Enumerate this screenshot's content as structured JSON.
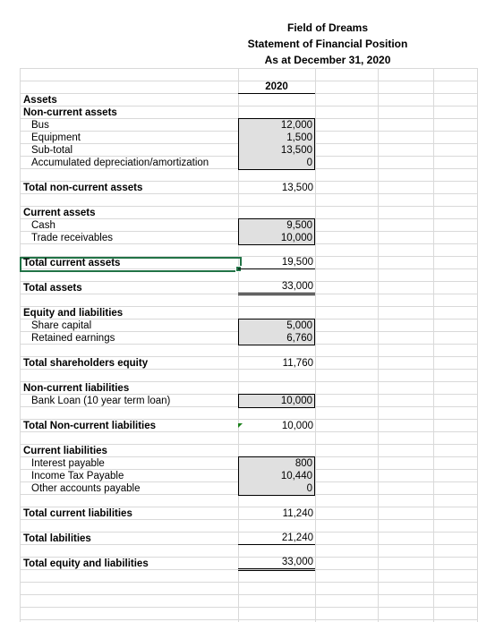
{
  "header": {
    "company": "Field of Dreams",
    "statement": "Statement of Financial Position",
    "date": "As at December 31, 2020",
    "year": "2020"
  },
  "assets": {
    "heading": "Assets",
    "noncurrent_heading": "Non-current assets",
    "bus": {
      "label": "Bus",
      "value": "12,000"
    },
    "equipment": {
      "label": "Equipment",
      "value": "1,500"
    },
    "subtotal": {
      "label": "Sub-total",
      "value": "13,500"
    },
    "accum_dep": {
      "label": "Accumulated depreciation/amortization",
      "value": "0"
    },
    "total_noncurrent": {
      "label": "Total non-current assets",
      "value": "13,500"
    },
    "current_heading": "Current assets",
    "cash": {
      "label": "Cash",
      "value": "9,500"
    },
    "trade_receivables": {
      "label": "Trade receivables",
      "value": "10,000"
    },
    "total_current": {
      "label": "Total current assets",
      "value": "19,500"
    },
    "total_assets": {
      "label": "Total assets",
      "value": "33,000"
    }
  },
  "equity": {
    "heading": "Equity and liabilities",
    "share_capital": {
      "label": "Share capital",
      "value": "5,000"
    },
    "retained_earnings": {
      "label": "Retained earnings",
      "value": "6,760"
    },
    "total_equity": {
      "label": "Total shareholders equity",
      "value": "11,760"
    }
  },
  "liabilities": {
    "noncurrent_heading": "Non-current liabilities",
    "bank_loan": {
      "label": "Bank Loan (10 year term loan)",
      "value": "10,000"
    },
    "total_noncurrent": {
      "label": "Total Non-current liabilities",
      "value": "10,000"
    },
    "current_heading": "Current liabilities",
    "interest_payable": {
      "label": "Interest payable",
      "value": "800"
    },
    "income_tax": {
      "label": "Income Tax Payable",
      "value": "10,440"
    },
    "other_payable": {
      "label": "Other accounts payable",
      "value": "0"
    },
    "total_current": {
      "label": "Total current liabilities",
      "value": "11,240"
    },
    "total_liabilities": {
      "label": "Total labilities",
      "value": "21,240"
    },
    "total_equity_liabilities": {
      "label": "Total equity and liabilities",
      "value": "33,000"
    }
  }
}
